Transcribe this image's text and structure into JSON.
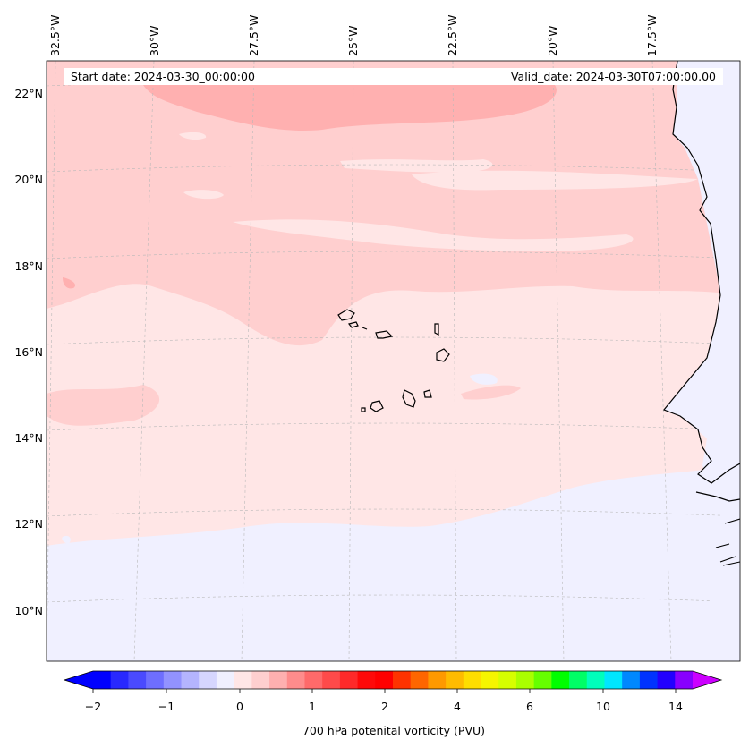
{
  "map": {
    "longitude_labels": [
      "32.5°W",
      "30°W",
      "27.5°W",
      "25°W",
      "22.5°W",
      "20°W",
      "17.5°W"
    ],
    "latitude_labels": [
      "22°N",
      "20°N",
      "18°N",
      "16°N",
      "14°N",
      "12°N",
      "10°N"
    ],
    "start_date_text": "Start date: 2024-03-30_00:00:00",
    "valid_date_text": "Valid_date: 2024-03-30T07:00:00.00",
    "background_color": "#ffe6e6",
    "land_outline_color": "#000000",
    "gridlines": true
  },
  "colorbar": {
    "title": "700 hPa potenital vorticity (PVU)",
    "tick_labels": [
      "−2",
      "−1",
      "0",
      "1",
      "2",
      "4",
      "6",
      "10",
      "14"
    ],
    "colors": [
      "#0000ff",
      "#2828ff",
      "#4a4aff",
      "#6e6eff",
      "#9292ff",
      "#b4b4ff",
      "#d6d6ff",
      "#f0f0ff",
      "#ffe6e6",
      "#ffcfcf",
      "#ffb0b0",
      "#ff8c8c",
      "#ff6a6a",
      "#ff4a4a",
      "#ff2a2a",
      "#ff0a0a",
      "#ff0000",
      "#ff3300",
      "#ff6600",
      "#ff9900",
      "#ffbb00",
      "#ffdd00",
      "#f5f500",
      "#d6ff00",
      "#aaff00",
      "#66ff00",
      "#00ff00",
      "#00ff66",
      "#00ffbb",
      "#00e6ff",
      "#0088ff",
      "#0033ff",
      "#2200ff",
      "#8800ff"
    ],
    "extend_min_color": "#0000ff",
    "extend_max_color": "#cc00ff"
  }
}
